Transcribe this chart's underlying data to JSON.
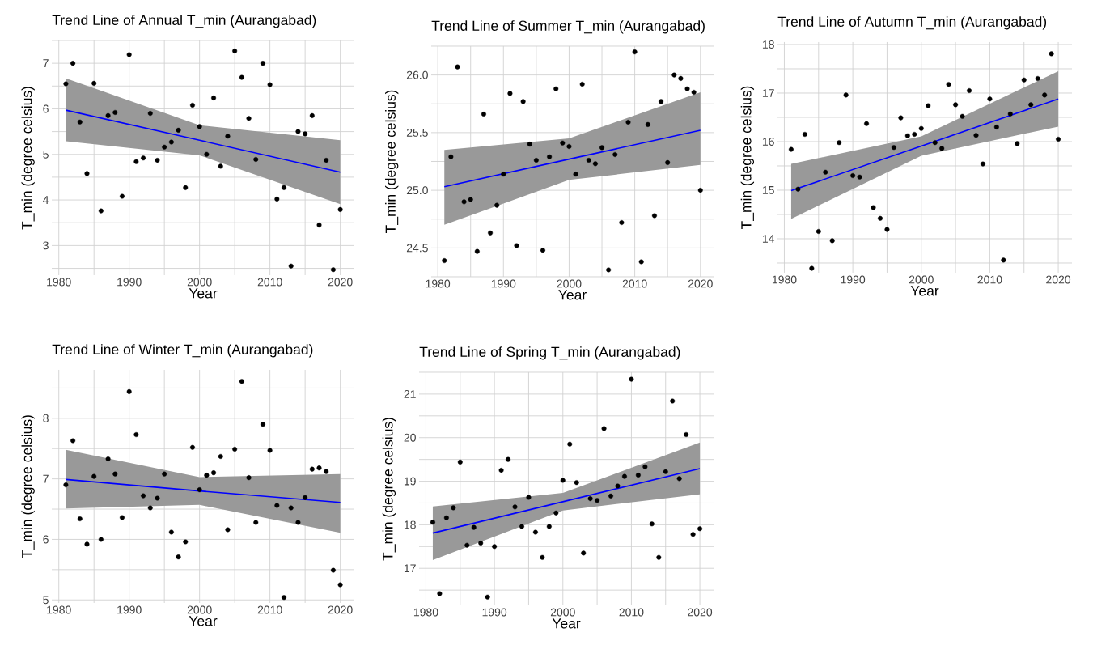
{
  "chart_data": [
    {
      "type": "scatter",
      "title": "Trend Line of Annual T_min (Aurangabad)",
      "xlabel": "Year",
      "ylabel": "T_min (degree celsius)",
      "xlim": [
        1979,
        2022
      ],
      "ylim": [
        2.35,
        7.5
      ],
      "xticks": [
        1980,
        1990,
        2000,
        2010,
        2020
      ],
      "yticks": [
        3,
        4,
        5,
        6,
        7
      ],
      "grid": true,
      "series": [
        {
          "marker": "circle",
          "color": "#000000",
          "x": [
            1981,
            1982,
            1983,
            1984,
            1985,
            1986,
            1987,
            1988,
            1989,
            1990,
            1991,
            1992,
            1993,
            1994,
            1995,
            1996,
            1997,
            1998,
            1999,
            2000,
            2001,
            2002,
            2003,
            2004,
            2005,
            2006,
            2007,
            2008,
            2009,
            2010,
            2011,
            2012,
            2013,
            2014,
            2015,
            2016,
            2017,
            2018,
            2019,
            2020
          ],
          "values": [
            6.55,
            7.0,
            5.71,
            4.58,
            6.56,
            3.76,
            5.85,
            5.92,
            4.08,
            7.19,
            4.84,
            4.92,
            5.9,
            4.87,
            5.16,
            5.27,
            5.53,
            4.27,
            6.08,
            5.61,
            5.0,
            6.24,
            4.74,
            5.4,
            7.27,
            6.69,
            5.79,
            4.89,
            7.0,
            6.53,
            4.02,
            4.27,
            2.55,
            5.5,
            5.45,
            5.85,
            3.45,
            4.87,
            2.47,
            3.79
          ]
        },
        {
          "type": "line",
          "color": "#0000ff",
          "x": [
            1981,
            2000,
            2020
          ],
          "values": [
            5.97,
            5.31,
            4.61
          ],
          "lower": [
            5.29,
            4.98,
            3.91
          ],
          "upper": [
            6.67,
            5.64,
            5.31
          ]
        }
      ]
    },
    {
      "type": "scatter",
      "title": "Trend Line of Summer T_min (Aurangabad)",
      "xlabel": "Year",
      "ylabel": "T_min (degree celsius)",
      "xlim": [
        1979,
        2022
      ],
      "ylim": [
        24.25,
        26.25
      ],
      "xticks": [
        1980,
        1990,
        2000,
        2010,
        2020
      ],
      "yticks": [
        {
          "value": 24.5,
          "label": "24.5"
        },
        {
          "value": 25,
          "label": "25.0"
        },
        {
          "value": 25.5,
          "label": "25.5"
        },
        {
          "value": 26,
          "label": "26.0"
        }
      ],
      "grid": true,
      "series": [
        {
          "marker": "circle",
          "color": "#000000",
          "x": [
            1981,
            1982,
            1983,
            1984,
            1985,
            1986,
            1987,
            1988,
            1989,
            1990,
            1991,
            1992,
            1993,
            1994,
            1995,
            1996,
            1997,
            1998,
            1999,
            2000,
            2001,
            2002,
            2003,
            2004,
            2005,
            2006,
            2007,
            2008,
            2009,
            2010,
            2011,
            2012,
            2013,
            2014,
            2015,
            2016,
            2017,
            2018,
            2019,
            2020
          ],
          "values": [
            24.39,
            25.29,
            26.07,
            24.9,
            24.92,
            24.47,
            25.66,
            24.63,
            24.87,
            25.14,
            25.84,
            24.52,
            25.77,
            25.4,
            25.26,
            24.48,
            25.29,
            25.88,
            25.41,
            25.38,
            25.14,
            25.92,
            25.26,
            25.23,
            25.37,
            24.31,
            25.31,
            24.72,
            25.59,
            26.2,
            24.38,
            25.57,
            24.78,
            25.77,
            25.24,
            26.0,
            25.97,
            25.88,
            25.85,
            25.0
          ]
        },
        {
          "type": "line",
          "color": "#0000ff",
          "x": [
            1981,
            2000,
            2020
          ],
          "values": [
            25.03,
            25.27,
            25.52
          ],
          "lower": [
            24.7,
            25.09,
            25.22
          ],
          "upper": [
            25.35,
            25.45,
            25.85
          ]
        }
      ]
    },
    {
      "type": "scatter",
      "title": "Trend Line of Autumn T_min (Aurangabad)",
      "xlabel": "Year",
      "ylabel": "T_min (degree celsius)",
      "xlim": [
        1979,
        2022
      ],
      "ylim": [
        13.3,
        18.05
      ],
      "xticks": [
        1980,
        1990,
        2000,
        2010,
        2020
      ],
      "yticks": [
        14,
        15,
        16,
        17,
        18
      ],
      "grid": true,
      "series": [
        {
          "marker": "circle",
          "color": "#000000",
          "x": [
            1981,
            1982,
            1983,
            1984,
            1985,
            1986,
            1987,
            1988,
            1989,
            1990,
            1991,
            1992,
            1993,
            1994,
            1995,
            1996,
            1997,
            1998,
            1999,
            2000,
            2001,
            2002,
            2003,
            2004,
            2005,
            2006,
            2007,
            2008,
            2009,
            2010,
            2011,
            2012,
            2013,
            2014,
            2015,
            2016,
            2017,
            2018,
            2019,
            2020
          ],
          "values": [
            15.84,
            15.02,
            16.15,
            13.39,
            14.15,
            15.37,
            13.96,
            15.98,
            16.96,
            15.3,
            15.27,
            16.37,
            14.64,
            14.42,
            14.19,
            15.88,
            16.49,
            16.12,
            16.15,
            16.27,
            16.74,
            15.98,
            15.86,
            17.18,
            16.76,
            16.52,
            17.05,
            16.13,
            15.54,
            16.88,
            16.3,
            13.56,
            16.57,
            15.96,
            17.27,
            16.76,
            17.3,
            16.96,
            17.81,
            16.05
          ]
        },
        {
          "type": "line",
          "color": "#0000ff",
          "x": [
            1981,
            2000,
            2020
          ],
          "values": [
            14.99,
            15.91,
            16.88
          ],
          "lower": [
            14.41,
            15.71,
            16.31
          ],
          "upper": [
            15.54,
            16.11,
            17.45
          ]
        }
      ]
    },
    {
      "type": "scatter",
      "title": "Trend Line of Winter T_min (Aurangabad)",
      "xlabel": "Year",
      "ylabel": "T_min (degree celsius)",
      "xlim": [
        1979,
        2022
      ],
      "ylim": [
        4.95,
        8.8
      ],
      "xticks": [
        1980,
        1990,
        2000,
        2010,
        2020
      ],
      "yticks": [
        5,
        6,
        7,
        8
      ],
      "grid": true,
      "series": [
        {
          "marker": "circle",
          "color": "#000000",
          "x": [
            1981,
            1982,
            1983,
            1984,
            1985,
            1986,
            1987,
            1988,
            1989,
            1990,
            1991,
            1992,
            1993,
            1994,
            1995,
            1996,
            1997,
            1998,
            1999,
            2000,
            2001,
            2002,
            2003,
            2004,
            2005,
            2006,
            2007,
            2008,
            2009,
            2010,
            2011,
            2012,
            2013,
            2014,
            2015,
            2016,
            2017,
            2018,
            2019,
            2020
          ],
          "values": [
            6.9,
            7.63,
            6.34,
            5.92,
            7.04,
            6.0,
            7.33,
            7.08,
            6.36,
            8.44,
            7.73,
            6.72,
            6.52,
            6.68,
            7.08,
            6.12,
            5.71,
            5.96,
            7.52,
            6.82,
            7.06,
            7.1,
            7.37,
            6.16,
            7.49,
            8.61,
            7.02,
            6.28,
            7.9,
            7.47,
            6.56,
            5.04,
            6.52,
            6.28,
            6.69,
            7.16,
            7.18,
            7.12,
            5.49,
            5.25
          ]
        },
        {
          "type": "line",
          "color": "#0000ff",
          "x": [
            1981,
            2000,
            2020
          ],
          "values": [
            6.99,
            6.8,
            6.61
          ],
          "lower": [
            6.51,
            6.57,
            6.11
          ],
          "upper": [
            7.48,
            7.03,
            7.08
          ]
        }
      ]
    },
    {
      "type": "scatter",
      "title": "Trend Line of Spring T_min (Aurangabad)",
      "xlabel": "Year",
      "ylabel": "T_min (degree celsius)",
      "xlim": [
        1979,
        2022
      ],
      "ylim": [
        16.15,
        21.5
      ],
      "xticks": [
        1980,
        1990,
        2000,
        2010,
        2020
      ],
      "yticks": [
        17,
        18,
        19,
        20,
        21
      ],
      "grid": true,
      "series": [
        {
          "marker": "circle",
          "color": "#000000",
          "x": [
            1981,
            1982,
            1983,
            1984,
            1985,
            1986,
            1987,
            1988,
            1989,
            1990,
            1991,
            1992,
            1993,
            1994,
            1995,
            1996,
            1997,
            1998,
            1999,
            2000,
            2001,
            2002,
            2003,
            2004,
            2005,
            2006,
            2007,
            2008,
            2009,
            2010,
            2011,
            2012,
            2013,
            2014,
            2015,
            2016,
            2017,
            2018,
            2019,
            2020
          ],
          "values": [
            18.06,
            16.42,
            18.16,
            18.39,
            19.44,
            17.53,
            17.94,
            17.58,
            16.34,
            17.5,
            19.25,
            19.5,
            18.41,
            17.96,
            18.63,
            17.83,
            17.25,
            17.96,
            18.27,
            19.02,
            19.85,
            18.97,
            17.35,
            18.6,
            18.56,
            20.21,
            18.66,
            18.89,
            19.11,
            21.34,
            19.14,
            19.33,
            18.02,
            17.25,
            19.22,
            20.84,
            19.06,
            20.07,
            17.78,
            17.91
          ]
        },
        {
          "type": "line",
          "color": "#0000ff",
          "x": [
            1981,
            2000,
            2020
          ],
          "values": [
            17.81,
            18.53,
            19.29
          ],
          "lower": [
            17.19,
            18.33,
            18.7
          ],
          "upper": [
            18.42,
            18.73,
            19.89
          ]
        }
      ]
    }
  ]
}
